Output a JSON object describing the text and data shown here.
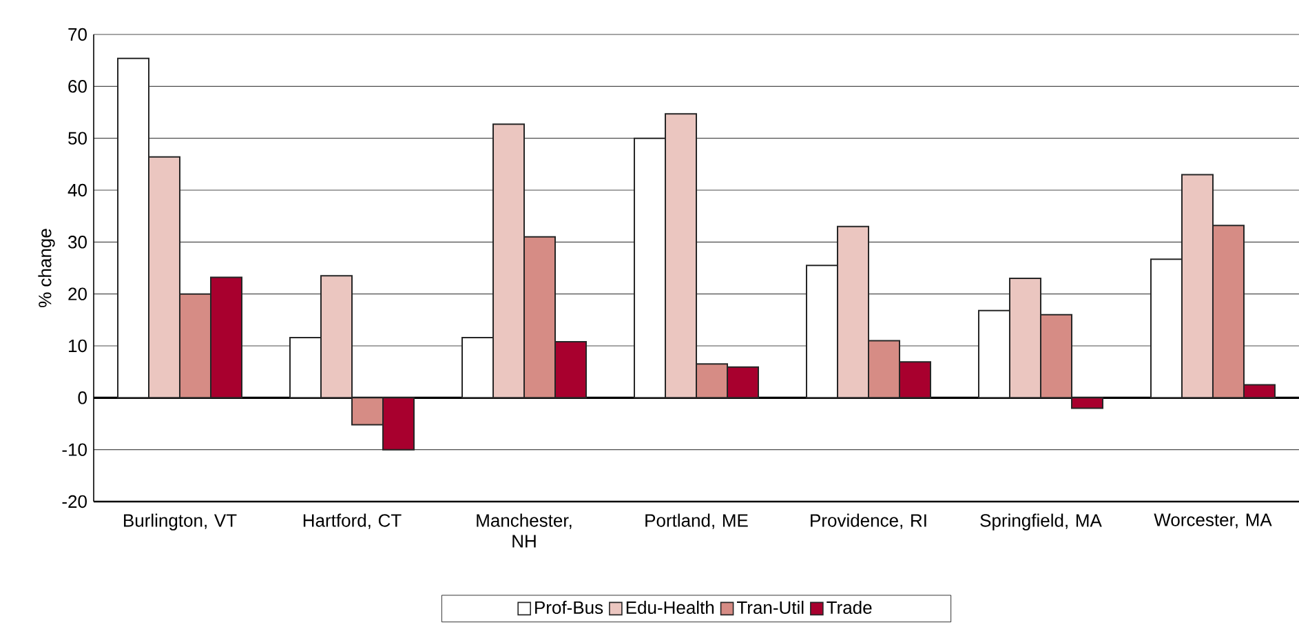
{
  "chart_data": {
    "type": "bar",
    "ylabel": "% change",
    "categories": [
      "Burlington, VT",
      "Hartford, CT",
      "Manchester, NH",
      "Portland, ME",
      "Providence, RI",
      "Springfield, MA",
      "Worcester, MA"
    ],
    "series": [
      {
        "name": "Prof-Bus",
        "color": "#ffffff",
        "values": [
          65.4,
          11.6,
          11.6,
          50,
          25.5,
          16.8,
          26.7
        ]
      },
      {
        "name": "Edu-Health",
        "color": "#ebc6c0",
        "values": [
          46.4,
          23.5,
          52.7,
          54.7,
          33,
          23,
          43
        ]
      },
      {
        "name": "Tran-Util",
        "color": "#d68c85",
        "values": [
          20,
          -5.2,
          31,
          6.5,
          11,
          16,
          33.2
        ]
      },
      {
        "name": "Trade",
        "color": "#a8002e",
        "values": [
          23.2,
          -10,
          10.8,
          5.9,
          6.9,
          -2,
          2.5
        ]
      }
    ],
    "ylim": [
      -20,
      70
    ],
    "yticks": [
      -20,
      -10,
      0,
      10,
      20,
      30,
      40,
      50,
      60,
      70
    ],
    "grid": "y",
    "legend": "bottom"
  }
}
